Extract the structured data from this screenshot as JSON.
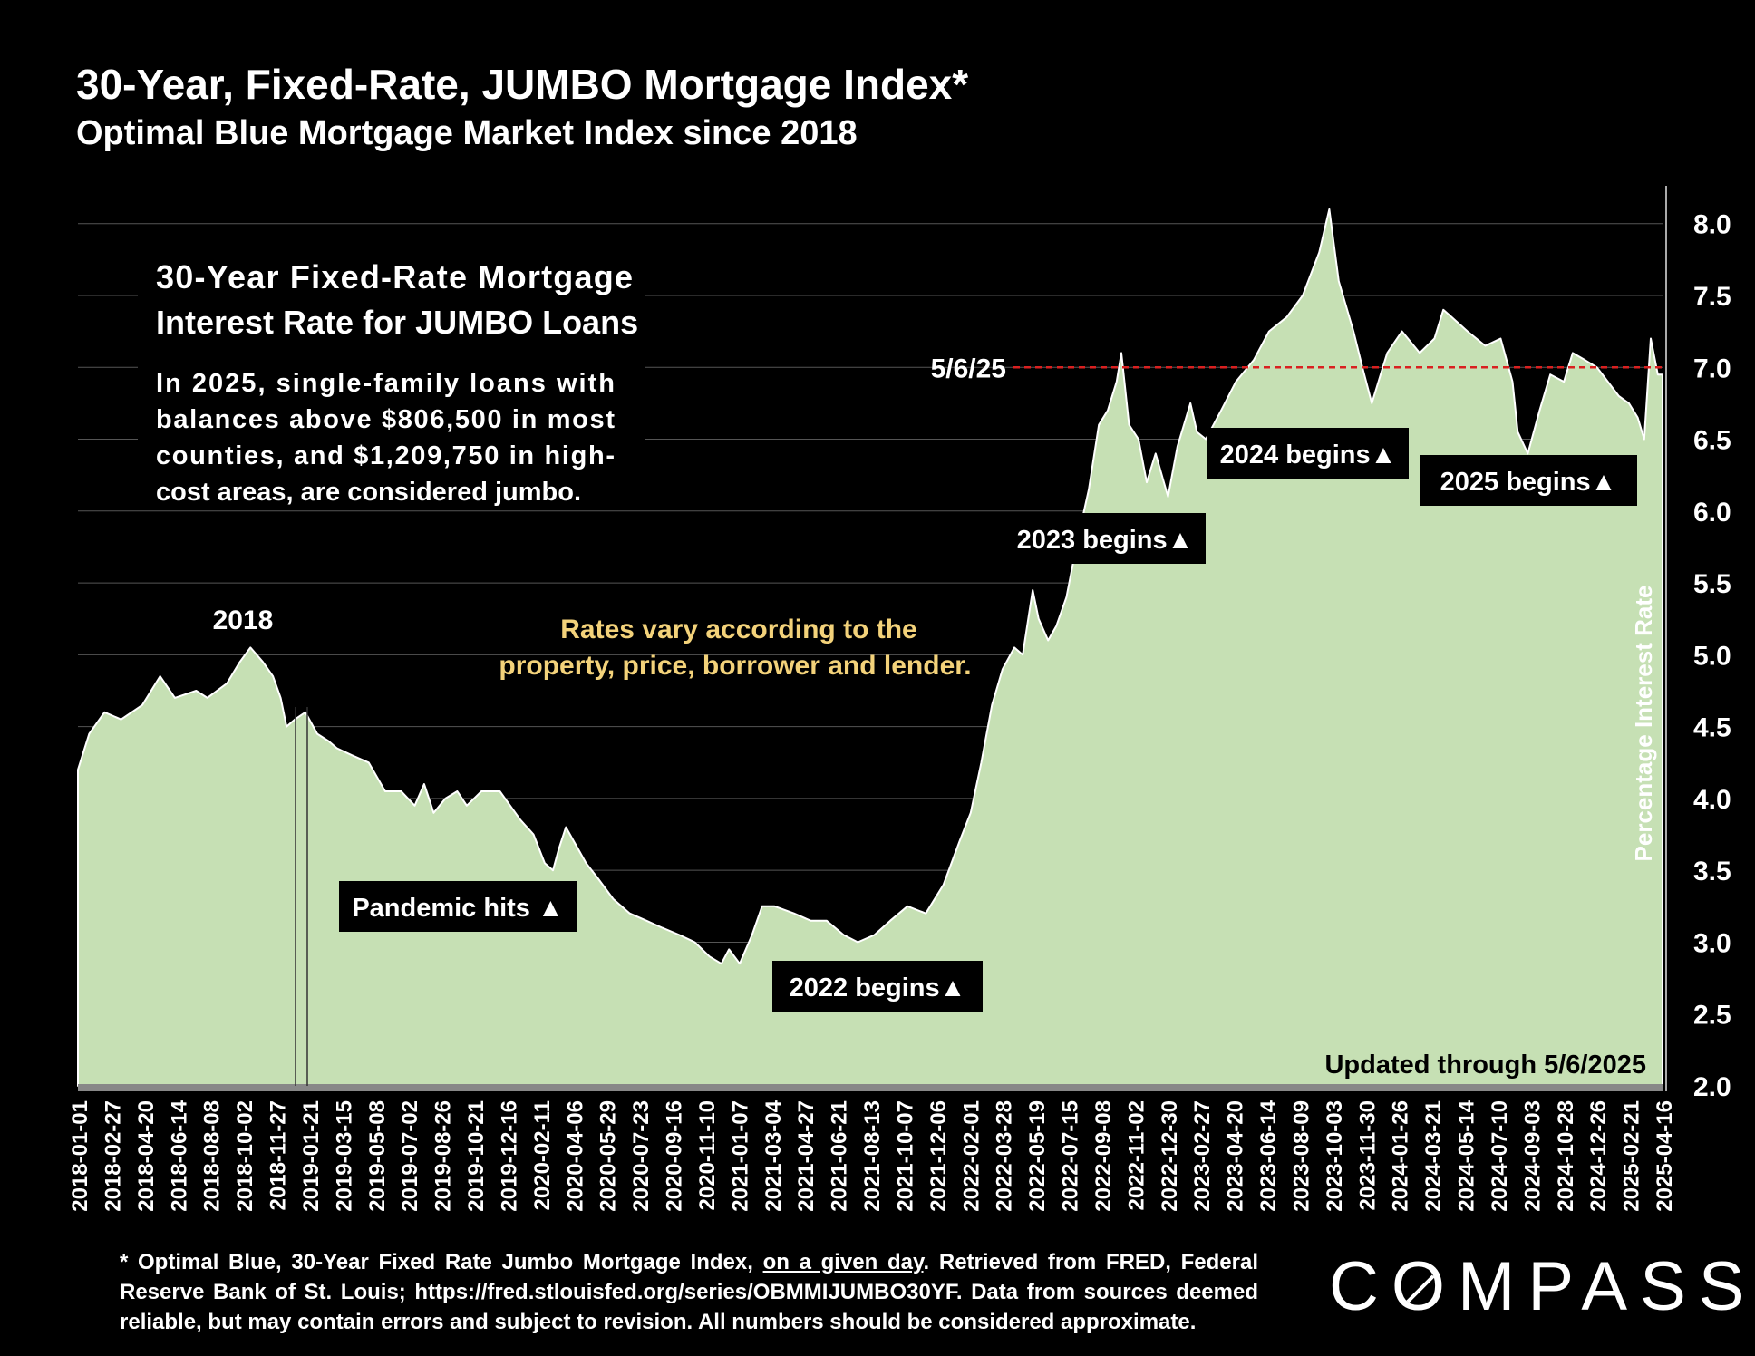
{
  "header": {
    "title": "30-Year, Fixed-Rate, JUMBO Mortgage Index*",
    "subtitle": "Optimal Blue Mortgage Market Index since 2018"
  },
  "footnote": {
    "part1": "* Optimal Blue, 30-Year Fixed Rate Jumbo Mortgage Index, ",
    "underlined": "on a given day",
    "part2": ". Retrieved from FRED, Federal Reserve Bank of St. Louis; https://fred.stlouisfed.org/series/OBMMIJUMBO30YF. Data from sources deemed reliable, but may contain errors and subject to revision. All numbers should be considered approximate."
  },
  "logo": {
    "text_before": "C",
    "text_o": "O",
    "text_after": "MPASS"
  },
  "colors": {
    "background": "#000000",
    "area_fill": "#c6e0b4",
    "area_edge": "#ffffff",
    "ref_line": "#d92020",
    "note_text": "#f3d27a",
    "label_box": "#000000"
  },
  "chart_data": {
    "type": "area",
    "title": "",
    "ylabel": "Percentage Interest Rate",
    "xlabel": "",
    "ylim": [
      2.0,
      8.2
    ],
    "yticks": [
      "2.0",
      "2.5",
      "3.0",
      "3.5",
      "4.0",
      "4.5",
      "5.0",
      "5.5",
      "6.0",
      "6.5",
      "7.0",
      "7.5",
      "8.0"
    ],
    "xticks": [
      "2018-01-01",
      "2018-02-27",
      "2018-04-20",
      "2018-06-14",
      "2018-08-08",
      "2018-10-02",
      "2018-11-27",
      "2019-01-21",
      "2019-03-15",
      "2019-05-08",
      "2019-07-02",
      "2019-08-26",
      "2019-10-21",
      "2019-12-16",
      "2020-02-11",
      "2020-04-06",
      "2020-05-29",
      "2020-07-23",
      "2020-09-16",
      "2020-11-10",
      "2021-01-07",
      "2021-03-04",
      "2021-04-27",
      "2021-06-21",
      "2021-08-13",
      "2021-10-07",
      "2021-12-06",
      "2022-02-01",
      "2022-03-28",
      "2022-05-19",
      "2022-07-15",
      "2022-09-08",
      "2022-11-02",
      "2022-12-30",
      "2023-02-27",
      "2023-04-20",
      "2023-06-14",
      "2023-08-09",
      "2023-10-03",
      "2023-11-30",
      "2024-01-26",
      "2024-03-21",
      "2024-05-14",
      "2024-07-10",
      "2024-09-03",
      "2024-10-28",
      "2024-12-26",
      "2025-02-21",
      "2025-04-16"
    ],
    "grid": true,
    "series": [
      {
        "name": "",
        "x": [
          "2018-01-01",
          "2018-01-20",
          "2018-02-15",
          "2018-03-15",
          "2018-04-20",
          "2018-05-20",
          "2018-06-14",
          "2018-07-20",
          "2018-08-08",
          "2018-09-10",
          "2018-10-02",
          "2018-10-20",
          "2018-11-10",
          "2018-11-27",
          "2018-12-10",
          "2018-12-20",
          "2019-01-03",
          "2019-01-21",
          "2019-02-10",
          "2019-03-01",
          "2019-03-15",
          "2019-04-10",
          "2019-05-08",
          "2019-06-05",
          "2019-07-02",
          "2019-07-25",
          "2019-08-10",
          "2019-08-26",
          "2019-09-15",
          "2019-10-05",
          "2019-10-21",
          "2019-11-15",
          "2019-12-16",
          "2020-01-20",
          "2020-02-11",
          "2020-03-01",
          "2020-03-15",
          "2020-03-25",
          "2020-04-06",
          "2020-05-10",
          "2020-05-29",
          "2020-06-25",
          "2020-07-23",
          "2020-08-20",
          "2020-09-16",
          "2020-10-15",
          "2020-11-10",
          "2020-12-05",
          "2020-12-25",
          "2021-01-07",
          "2021-01-25",
          "2021-02-15",
          "2021-03-04",
          "2021-03-25",
          "2021-04-27",
          "2021-05-25",
          "2021-06-21",
          "2021-07-20",
          "2021-08-13",
          "2021-09-10",
          "2021-10-07",
          "2021-11-05",
          "2021-12-06",
          "2022-01-05",
          "2022-02-01",
          "2022-02-20",
          "2022-03-10",
          "2022-03-28",
          "2022-04-15",
          "2022-05-05",
          "2022-05-19",
          "2022-06-05",
          "2022-06-15",
          "2022-07-01",
          "2022-07-15",
          "2022-08-01",
          "2022-08-20",
          "2022-09-08",
          "2022-09-25",
          "2022-10-10",
          "2022-10-25",
          "2022-11-02",
          "2022-11-15",
          "2022-12-01",
          "2022-12-15",
          "2022-12-30",
          "2023-01-20",
          "2023-02-05",
          "2023-02-27",
          "2023-03-10",
          "2023-03-25",
          "2023-04-20",
          "2023-05-15",
          "2023-06-14",
          "2023-07-10",
          "2023-08-09",
          "2023-09-05",
          "2023-10-03",
          "2023-10-20",
          "2023-11-05",
          "2023-11-30",
          "2023-12-15",
          "2023-12-31",
          "2024-01-26",
          "2024-02-20",
          "2024-03-21",
          "2024-04-15",
          "2024-04-30",
          "2024-05-14",
          "2024-06-10",
          "2024-07-10",
          "2024-08-05",
          "2024-08-25",
          "2024-09-03",
          "2024-09-20",
          "2024-10-10",
          "2024-10-28",
          "2024-11-20",
          "2024-12-05",
          "2024-12-26",
          "2025-01-15",
          "2025-02-21",
          "2025-03-10",
          "2025-03-25",
          "2025-04-05",
          "2025-04-16",
          "2025-04-28",
          "2025-05-06"
        ],
        "y": [
          4.2,
          4.45,
          4.6,
          4.55,
          4.65,
          4.85,
          4.7,
          4.75,
          4.7,
          4.8,
          4.95,
          5.05,
          4.95,
          4.85,
          4.7,
          4.5,
          4.55,
          4.6,
          4.45,
          4.4,
          4.35,
          4.3,
          4.25,
          4.05,
          4.05,
          3.95,
          4.1,
          3.9,
          4.0,
          4.05,
          3.95,
          4.05,
          4.05,
          3.85,
          3.75,
          3.55,
          3.5,
          3.65,
          3.8,
          3.55,
          3.45,
          3.3,
          3.2,
          3.15,
          3.1,
          3.05,
          3.0,
          2.9,
          2.85,
          2.95,
          2.85,
          3.05,
          3.25,
          3.25,
          3.2,
          3.15,
          3.15,
          3.05,
          3.0,
          3.05,
          3.15,
          3.25,
          3.2,
          3.4,
          3.7,
          3.9,
          4.25,
          4.65,
          4.9,
          5.05,
          5.0,
          5.45,
          5.25,
          5.1,
          5.2,
          5.4,
          5.8,
          6.15,
          6.6,
          6.7,
          6.9,
          7.1,
          6.6,
          6.5,
          6.2,
          6.4,
          6.1,
          6.45,
          6.75,
          6.55,
          6.5,
          6.7,
          6.9,
          7.05,
          7.25,
          7.35,
          7.5,
          7.8,
          8.1,
          7.6,
          7.25,
          7.0,
          6.75,
          7.1,
          7.25,
          7.1,
          7.2,
          7.4,
          7.35,
          7.25,
          7.15,
          7.2,
          6.9,
          6.55,
          6.4,
          6.7,
          6.95,
          6.9,
          7.1,
          7.05,
          7.0,
          6.8,
          6.75,
          6.65,
          6.5,
          7.2,
          6.95,
          6.95
        ]
      }
    ],
    "reference_line": {
      "label": "5/6/25",
      "value": 7.0
    },
    "annotations": {
      "info_title": "30-Year Fixed-Rate Mortgage Interest Rate for JUMBO Loans",
      "info_body": "In 2025, single-family loans with balances above $806,500 in most counties, and $1,209,750 in high-cost areas, are considered jumbo.",
      "year_2018": "2018",
      "note": "Rates vary according to the property, price, borrower and lender.",
      "pandemic": "Pandemic hits ▲",
      "b2022": "2022 begins▲",
      "b2023": "2023 begins▲",
      "b2024": "2024 begins▲",
      "b2025": "2025 begins▲",
      "updated": "Updated through 5/6/2025"
    }
  }
}
